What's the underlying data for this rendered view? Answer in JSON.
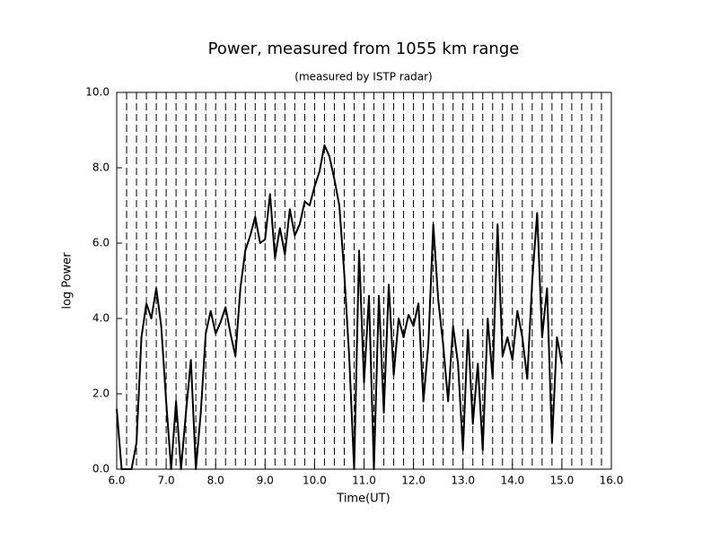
{
  "chart_data": {
    "type": "line",
    "title": "Power, measured from 1055 km range",
    "subtitle": "(measured by ISTP radar)",
    "x_label": "Time(UT)",
    "y_label": "log Power",
    "x": [
      6.0,
      6.1,
      6.2,
      6.3,
      6.4,
      6.5,
      6.6,
      6.7,
      6.8,
      6.9,
      7.0,
      7.1,
      7.2,
      7.3,
      7.4,
      7.5,
      7.6,
      7.7,
      7.8,
      7.9,
      8.0,
      8.1,
      8.2,
      8.3,
      8.4,
      8.5,
      8.6,
      8.7,
      8.8,
      8.9,
      9.0,
      9.1,
      9.2,
      9.3,
      9.4,
      9.5,
      9.6,
      9.7,
      9.8,
      9.9,
      10.0,
      10.1,
      10.2,
      10.3,
      10.4,
      10.5,
      10.6,
      10.7,
      10.8,
      10.9,
      11.0,
      11.1,
      11.2,
      11.3,
      11.4,
      11.5,
      11.6,
      11.7,
      11.8,
      11.9,
      12.0,
      12.1,
      12.2,
      12.3,
      12.4,
      12.5,
      12.6,
      12.7,
      12.8,
      12.9,
      13.0,
      13.1,
      13.2,
      13.3,
      13.4,
      13.5,
      13.6,
      13.7,
      13.8,
      13.9,
      14.0,
      14.1,
      14.2,
      14.3,
      14.4,
      14.5,
      14.6,
      14.7,
      14.8,
      14.9,
      15.0
    ],
    "series": [
      {
        "color": "#000000",
        "values": [
          1.6,
          0.0,
          0.0,
          0.0,
          0.7,
          3.5,
          4.4,
          4.0,
          4.8,
          3.8,
          1.8,
          0.0,
          1.8,
          0.0,
          1.5,
          2.9,
          0.0,
          1.5,
          3.6,
          4.2,
          3.6,
          3.9,
          4.3,
          3.6,
          3.0,
          4.8,
          5.8,
          6.2,
          6.7,
          6.0,
          6.1,
          7.3,
          5.6,
          6.4,
          5.7,
          6.9,
          6.2,
          6.5,
          7.1,
          7.0,
          7.5,
          7.9,
          8.6,
          8.3,
          7.7,
          7.0,
          5.2,
          3.0,
          0.0,
          5.8,
          2.3,
          4.6,
          0.0,
          4.6,
          1.5,
          4.9,
          2.5,
          4.0,
          3.5,
          4.1,
          3.8,
          4.4,
          1.8,
          3.3,
          6.5,
          4.5,
          3.3,
          1.8,
          3.8,
          2.8,
          0.5,
          3.7,
          1.2,
          2.8,
          0.5,
          4.0,
          2.4,
          6.5,
          3.0,
          3.5,
          2.9,
          4.2,
          3.5,
          2.4,
          5.0,
          6.8,
          3.5,
          4.8,
          0.7,
          3.5,
          2.8
        ]
      }
    ],
    "xlim": [
      6.0,
      16.0
    ],
    "ylim": [
      0.0,
      10.0
    ],
    "xticks": [
      {
        "value": 6,
        "label": "6.0"
      },
      {
        "value": 7,
        "label": "7.0"
      },
      {
        "value": 8,
        "label": "8.0"
      },
      {
        "value": 9,
        "label": "9.0"
      },
      {
        "value": 10,
        "label": "10.0"
      },
      {
        "value": 11,
        "label": "11.0"
      },
      {
        "value": 12,
        "label": "12.0"
      },
      {
        "value": 13,
        "label": "13.0"
      },
      {
        "value": 14,
        "label": "14.0"
      },
      {
        "value": 15,
        "label": "15.0"
      },
      {
        "value": 16,
        "label": "16.0"
      }
    ],
    "yticks": [
      {
        "value": 0,
        "label": "0.0"
      },
      {
        "value": 2,
        "label": "2.0"
      },
      {
        "value": 4,
        "label": "4.0"
      },
      {
        "value": 6,
        "label": "6.0"
      },
      {
        "value": 8,
        "label": "8.0"
      },
      {
        "value": 10,
        "label": "10.0"
      }
    ],
    "xgrid": [
      6.2,
      6.4,
      6.6,
      6.8,
      7.0,
      7.2,
      7.4,
      7.6,
      7.8,
      8.0,
      8.2,
      8.4,
      8.6,
      8.8,
      9.0,
      9.2,
      9.4,
      9.6,
      9.8,
      10.0,
      10.2,
      10.4,
      10.6,
      10.8,
      11.0,
      11.2,
      11.4,
      11.6,
      11.8,
      12.0,
      12.2,
      12.4,
      12.6,
      12.8,
      13.0,
      13.2,
      13.4,
      13.6,
      13.8,
      14.0,
      14.2,
      14.4,
      14.6,
      14.8,
      15.0,
      15.2,
      15.4,
      15.6,
      15.8
    ]
  }
}
